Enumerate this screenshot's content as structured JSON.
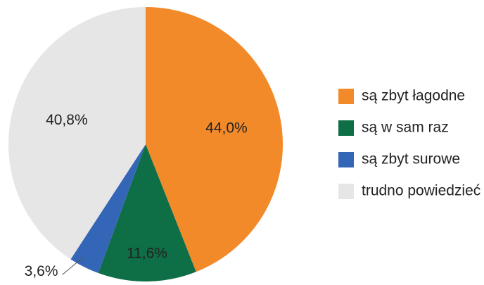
{
  "chart_data": {
    "type": "pie",
    "categories": [
      "są zbyt łagodne",
      "są w sam raz",
      "są zbyt surowe",
      "trudno powiedzieć"
    ],
    "values": [
      44.0,
      11.6,
      3.6,
      40.8
    ],
    "value_labels": [
      "44,0%",
      "11,6%",
      "3,6%",
      "40,8%"
    ],
    "colors": [
      "#f28a2a",
      "#0e6e45",
      "#3466b7",
      "#e6e6e6"
    ],
    "legend": "right"
  }
}
